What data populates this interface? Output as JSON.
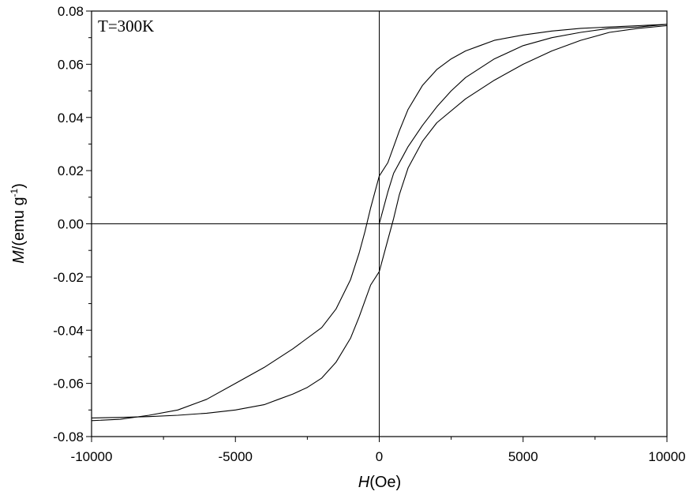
{
  "chart_data": {
    "type": "line",
    "title": "",
    "annotation": "T=300K",
    "xlabel": {
      "symbol": "H",
      "unit": "(Oe)"
    },
    "ylabel": {
      "symbol": "M",
      "unit": "/(emu g",
      "sup": "-1",
      "close": ")"
    },
    "xlim": [
      -10000,
      10000
    ],
    "ylim": [
      -0.08,
      0.08
    ],
    "xticks": [
      -10000,
      -5000,
      0,
      5000,
      10000
    ],
    "xtick_labels": [
      "-10000",
      "-5000",
      "0",
      "5000",
      "10000"
    ],
    "yticks": [
      -0.08,
      -0.06,
      -0.04,
      -0.02,
      0.0,
      0.02,
      0.04,
      0.06,
      0.08
    ],
    "ytick_labels": [
      "-0.08",
      "-0.06",
      "-0.04",
      "-0.02",
      "0.00",
      "0.02",
      "0.04",
      "0.06",
      "0.08"
    ],
    "grid": false,
    "series": [
      {
        "x": [
          10000,
          9000,
          8000,
          7000,
          6000,
          5000,
          4000,
          3500,
          3000,
          2500,
          2000,
          1500,
          1000,
          700,
          500,
          300,
          0,
          -300,
          -500,
          -700,
          -1000,
          -1500,
          -2000,
          -3000,
          -4000,
          -5000,
          -6000,
          -7000,
          -8000,
          -9000,
          -10000
        ],
        "y": [
          0.075,
          0.0745,
          0.074,
          0.0735,
          0.0725,
          0.071,
          0.069,
          0.067,
          0.065,
          0.062,
          0.058,
          0.052,
          0.043,
          0.035,
          0.029,
          0.023,
          0.018,
          0.006,
          -0.003,
          -0.011,
          -0.021,
          -0.032,
          -0.039,
          -0.047,
          -0.054,
          -0.06,
          -0.066,
          -0.07,
          -0.072,
          -0.0735,
          -0.074
        ]
      },
      {
        "x": [
          -10000,
          -9000,
          -8000,
          -7000,
          -6000,
          -5000,
          -4000,
          -3500,
          -3000,
          -2500,
          -2000,
          -1500,
          -1000,
          -700,
          -500,
          -300,
          0,
          300,
          500,
          700,
          1000,
          1500,
          2000,
          3000,
          4000,
          5000,
          6000,
          7000,
          8000,
          9000,
          10000
        ],
        "y": [
          -0.073,
          -0.0728,
          -0.0725,
          -0.072,
          -0.0712,
          -0.07,
          -0.068,
          -0.066,
          -0.064,
          -0.0615,
          -0.058,
          -0.052,
          -0.043,
          -0.035,
          -0.029,
          -0.023,
          -0.018,
          -0.006,
          0.002,
          0.011,
          0.021,
          0.031,
          0.038,
          0.047,
          0.054,
          0.06,
          0.065,
          0.069,
          0.072,
          0.0735,
          0.0745
        ]
      },
      {
        "x": [
          0,
          300,
          500,
          800,
          1000,
          1500,
          2000,
          2500,
          3000,
          4000,
          5000,
          6000,
          7000,
          8000,
          9000,
          10000
        ],
        "y": [
          0.0,
          0.012,
          0.019,
          0.025,
          0.029,
          0.037,
          0.044,
          0.05,
          0.055,
          0.062,
          0.067,
          0.07,
          0.072,
          0.0735,
          0.074,
          0.075
        ]
      }
    ]
  }
}
